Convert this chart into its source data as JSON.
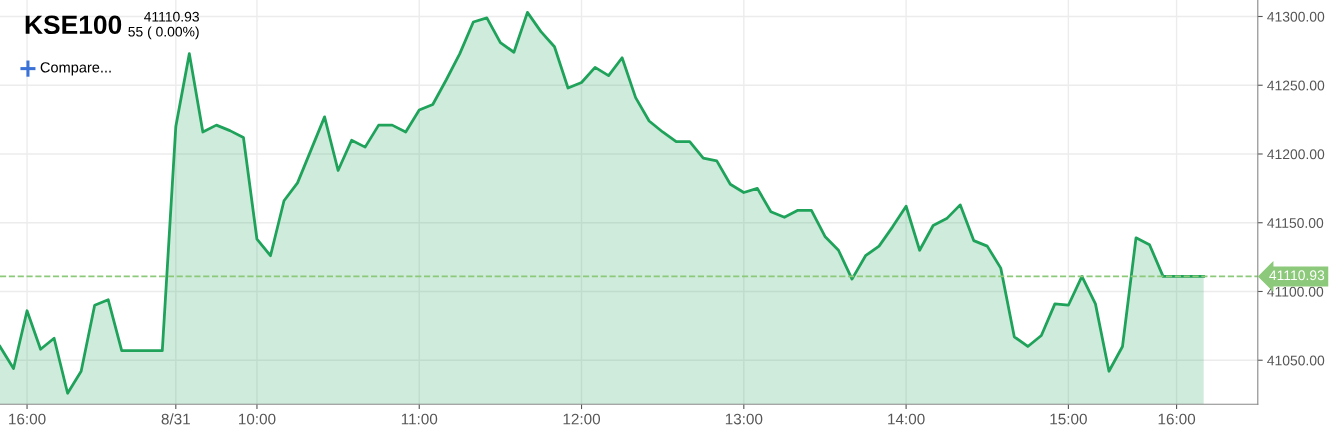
{
  "chart_data": {
    "type": "area",
    "title": "KSE100",
    "subtitle": "41110.93\n55 ( 0.00%)",
    "annotations": [
      "Compare..."
    ],
    "categories": [
      null,
      null,
      "16:00",
      null,
      null,
      null,
      null,
      null,
      null,
      null,
      null,
      null,
      null,
      "8/31",
      null,
      null,
      null,
      null,
      null,
      "10:00",
      null,
      null,
      null,
      null,
      null,
      null,
      null,
      null,
      null,
      null,
      null,
      "11:00",
      null,
      null,
      null,
      null,
      null,
      null,
      null,
      null,
      null,
      null,
      null,
      "12:00",
      null,
      null,
      null,
      null,
      null,
      null,
      null,
      null,
      null,
      null,
      null,
      "13:00",
      null,
      null,
      null,
      null,
      null,
      null,
      null,
      null,
      null,
      null,
      null,
      "14:00",
      null,
      null,
      null,
      null,
      null,
      null,
      null,
      null,
      null,
      null,
      null,
      "15:00",
      null,
      null,
      null,
      null,
      null,
      null,
      null,
      "16:00",
      null,
      null
    ],
    "series": [
      {
        "color": "#1fa25a",
        "values": [
          41060,
          41044,
          41086,
          41058,
          41066,
          41026,
          41042,
          41090,
          41094,
          41057,
          41057,
          41057,
          41057,
          41220,
          41273,
          41216,
          41221,
          41217,
          41212,
          41138,
          41126,
          41166,
          41179,
          41203,
          41227,
          41188,
          41210,
          41205,
          41221,
          41221,
          41216,
          41232,
          41236,
          41254,
          41273,
          41296,
          41299,
          41281,
          41274,
          41303,
          41289,
          41278,
          41248,
          41252,
          41263,
          41257,
          41270,
          41241,
          41224,
          41216,
          41209,
          41209,
          41197,
          41195,
          41178,
          41172,
          41175,
          41158,
          41154,
          41159,
          41159,
          41140,
          41130,
          41109,
          41126,
          41133,
          41147,
          41162,
          41130,
          41148,
          41153,
          41163,
          41137,
          41133,
          41117,
          41067,
          41060,
          41068,
          41091,
          41090,
          41111,
          41091,
          41042,
          41060,
          41139,
          41134,
          41111,
          41111,
          41111,
          41111
        ]
      }
    ],
    "ylim": [
      41018,
      41312
    ],
    "yticks": [
      {
        "value": 41050,
        "label": "41050.00"
      },
      {
        "value": 41100,
        "label": "41100.00"
      },
      {
        "value": 41150,
        "label": "41150.00"
      },
      {
        "value": 41200,
        "label": "41200.00"
      },
      {
        "value": 41250,
        "label": "41250.00"
      },
      {
        "value": 41300,
        "label": "41300.00"
      }
    ],
    "ref_lines": [
      {
        "axis": "y",
        "value": 41110.93,
        "label": "41110.93",
        "color": "#8cc97a",
        "line_style": "dashed"
      }
    ],
    "grid": true,
    "legend": false,
    "line_style": "solid",
    "marker": "none"
  }
}
